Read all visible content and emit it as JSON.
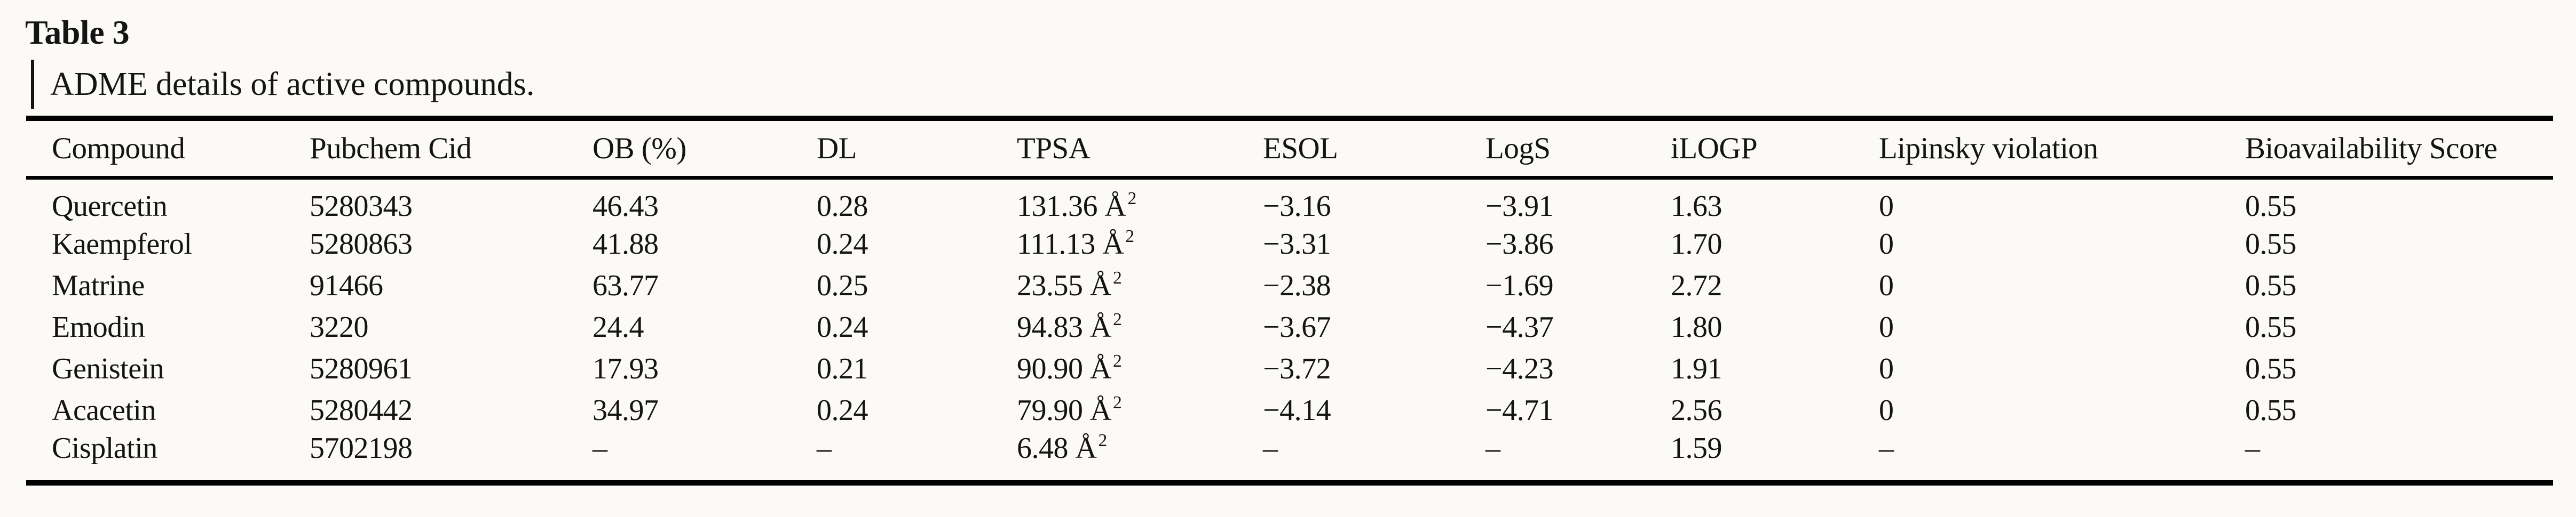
{
  "colors": {
    "page_background": "#fbfaf7",
    "text": "#141414",
    "rule": "#000000"
  },
  "table": {
    "title": "Table 3",
    "caption": "ADME details of active compounds.",
    "columns": [
      {
        "key": "compound",
        "label": "Compound"
      },
      {
        "key": "pubchem_cid",
        "label": "Pubchem Cid"
      },
      {
        "key": "ob",
        "label": "OB (%)"
      },
      {
        "key": "dl",
        "label": "DL"
      },
      {
        "key": "tpsa",
        "label": "TPSA"
      },
      {
        "key": "esol",
        "label": "ESOL"
      },
      {
        "key": "logs",
        "label": "LogS"
      },
      {
        "key": "ilogp",
        "label": "iLOGP"
      },
      {
        "key": "lipinsky",
        "label": "Lipinsky violation"
      },
      {
        "key": "bio_score",
        "label": "Bioavailability Score"
      }
    ],
    "rows": [
      {
        "compound": "Quercetin",
        "pubchem_cid": "5280343",
        "ob": "46.43",
        "dl": "0.28",
        "tpsa": {
          "value": "131.36 Å",
          "sup": "2"
        },
        "esol": "−3.16",
        "logs": "−3.91",
        "ilogp": "1.63",
        "lipinsky": "0",
        "bio_score": "0.55"
      },
      {
        "compound": "Kaempferol",
        "pubchem_cid": "5280863",
        "ob": "41.88",
        "dl": "0.24",
        "tpsa": {
          "value": "111.13 Å",
          "sup": "2"
        },
        "esol": "−3.31",
        "logs": "−3.86",
        "ilogp": "1.70",
        "lipinsky": "0",
        "bio_score": "0.55"
      },
      {
        "compound": "Matrine",
        "pubchem_cid": "91466",
        "ob": "63.77",
        "dl": "0.25",
        "tpsa": {
          "value": "23.55 Å",
          "sup": "2"
        },
        "esol": "−2.38",
        "logs": "−1.69",
        "ilogp": "2.72",
        "lipinsky": "0",
        "bio_score": "0.55"
      },
      {
        "compound": "Emodin",
        "pubchem_cid": "3220",
        "ob": "24.4",
        "dl": "0.24",
        "tpsa": {
          "value": "94.83 Å",
          "sup": "2"
        },
        "esol": "−3.67",
        "logs": "−4.37",
        "ilogp": "1.80",
        "lipinsky": "0",
        "bio_score": "0.55"
      },
      {
        "compound": "Genistein",
        "pubchem_cid": "5280961",
        "ob": "17.93",
        "dl": "0.21",
        "tpsa": {
          "value": "90.90 Å",
          "sup": "2"
        },
        "esol": "−3.72",
        "logs": "−4.23",
        "ilogp": "1.91",
        "lipinsky": "0",
        "bio_score": "0.55"
      },
      {
        "compound": "Acacetin",
        "pubchem_cid": "5280442",
        "ob": "34.97",
        "dl": "0.24",
        "tpsa": {
          "value": "79.90 Å",
          "sup": "2"
        },
        "esol": "−4.14",
        "logs": "−4.71",
        "ilogp": "2.56",
        "lipinsky": "0",
        "bio_score": "0.55"
      },
      {
        "compound": "Cisplatin",
        "pubchem_cid": "5702198",
        "ob": "–",
        "dl": "–",
        "tpsa": {
          "value": "6.48 Å",
          "sup": "2"
        },
        "esol": "–",
        "logs": "–",
        "ilogp": "1.59",
        "lipinsky": "–",
        "bio_score": "–"
      }
    ]
  }
}
